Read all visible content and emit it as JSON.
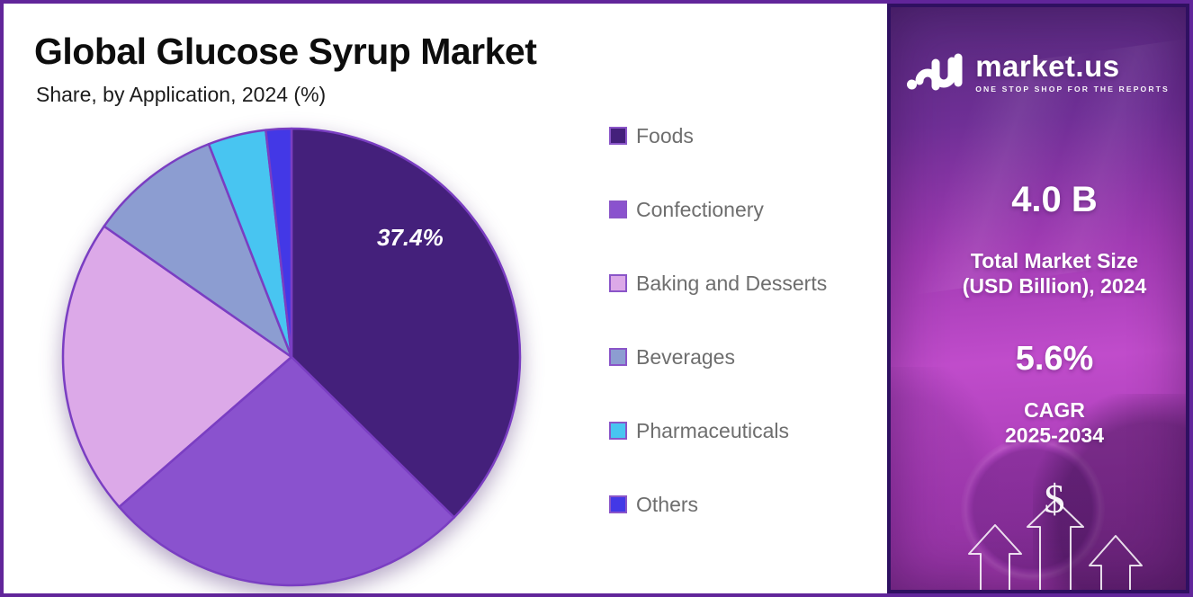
{
  "header": {
    "title": "Global Glucose Syrup Market",
    "subtitle": "Share, by Application, 2024 (%)"
  },
  "chart_data": {
    "type": "pie",
    "title": "Global Glucose Syrup Market",
    "subtitle": "Share, by Application, 2024 (%)",
    "unit": "%",
    "start_angle_deg": 0,
    "direction": "clockwise",
    "labels": [
      "Foods",
      "Confectionery",
      "Baking and Desserts",
      "Beverages",
      "Pharmaceuticals",
      "Others"
    ],
    "values": [
      37.4,
      26.2,
      21.1,
      9.4,
      4.1,
      1.8
    ],
    "colors": [
      "#44207b",
      "#8a52ce",
      "#dca9e8",
      "#8c9dd1",
      "#48c5f1",
      "#4338e6"
    ],
    "slice_stroke": "#7a3ec2",
    "legend_position": "right",
    "data_label": {
      "series": "Foods",
      "text": "37.4%"
    }
  },
  "side_panel": {
    "logo": {
      "brand": "market.us",
      "tagline": "ONE STOP SHOP FOR THE REPORTS"
    },
    "market_size_value": "4.0 B",
    "market_size_label": "Total Market Size\n(USD Billion), 2024",
    "cagr_value": "5.6%",
    "cagr_label": "CAGR\n2025-2034",
    "dollar_sign": "$",
    "colors": {
      "panel_top": "#56297c",
      "panel_mid": "#c04ccb",
      "panel_border": "#2f1061",
      "text": "#ffffff"
    }
  }
}
